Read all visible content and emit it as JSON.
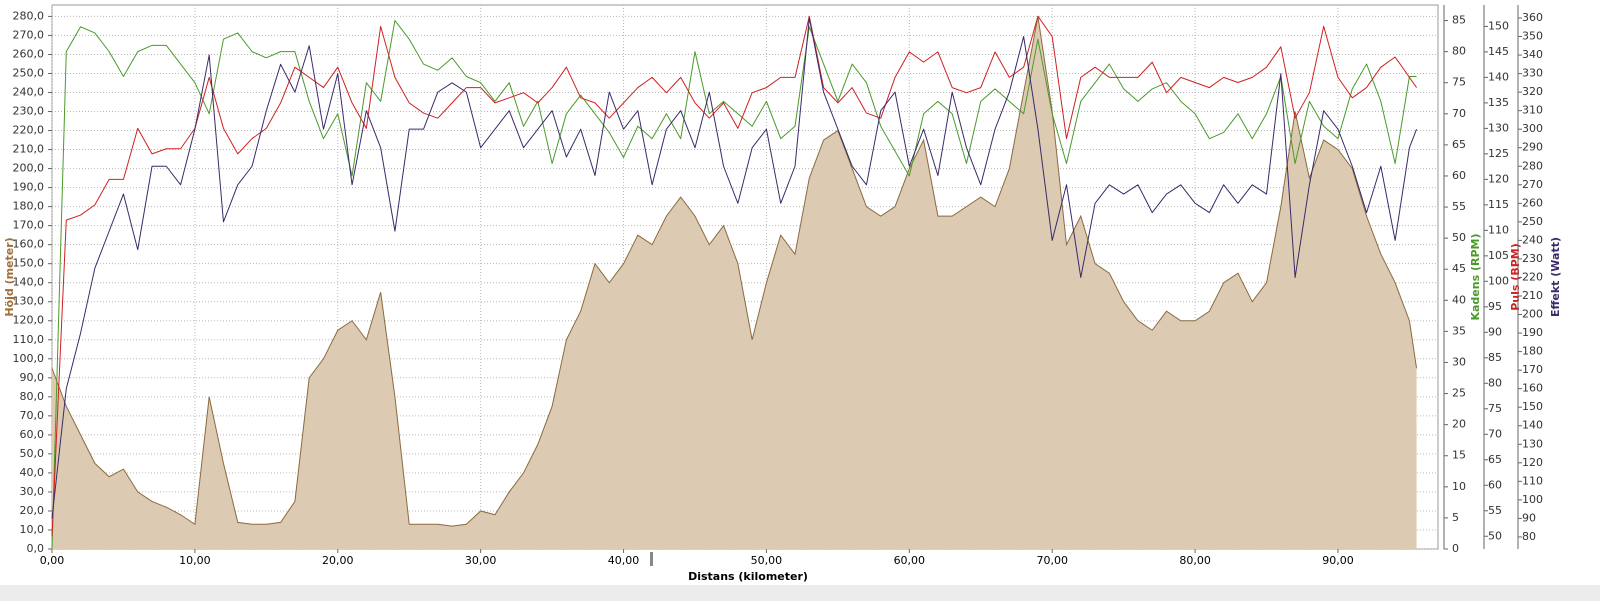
{
  "chart_data": {
    "type": "line",
    "xlabel": "Distans (kilometer)",
    "ylabel": "Höjd (meter)",
    "y2label": "Kadens (RPM)",
    "y3label": "Puls (BPM)",
    "y4label": "Effekt (Watt)",
    "grid": true,
    "xlim": [
      0,
      97
    ],
    "xticks": [
      {
        "value": 0,
        "label": "0,00"
      },
      {
        "value": 10,
        "label": "10,00"
      },
      {
        "value": 20,
        "label": "20,00"
      },
      {
        "value": 30,
        "label": "30,00"
      },
      {
        "value": 40,
        "label": "40,00"
      },
      {
        "value": 50,
        "label": "50,00"
      },
      {
        "value": 60,
        "label": "60,00"
      },
      {
        "value": 70,
        "label": "70,00"
      },
      {
        "value": 80,
        "label": "80,00"
      },
      {
        "value": 90,
        "label": "90,00"
      }
    ],
    "ylim": [
      0,
      286
    ],
    "yticks": [
      {
        "value": 0,
        "label": "0,0"
      },
      {
        "value": 10,
        "label": "10,0"
      },
      {
        "value": 20,
        "label": "20,0"
      },
      {
        "value": 30,
        "label": "30,0"
      },
      {
        "value": 40,
        "label": "40,0"
      },
      {
        "value": 50,
        "label": "50,0"
      },
      {
        "value": 60,
        "label": "60,0"
      },
      {
        "value": 70,
        "label": "70,0"
      },
      {
        "value": 80,
        "label": "80,0"
      },
      {
        "value": 90,
        "label": "90,0"
      },
      {
        "value": 100,
        "label": "100,0"
      },
      {
        "value": 110,
        "label": "110,0"
      },
      {
        "value": 120,
        "label": "120,0"
      },
      {
        "value": 130,
        "label": "130,0"
      },
      {
        "value": 140,
        "label": "140,0"
      },
      {
        "value": 150,
        "label": "150,0"
      },
      {
        "value": 160,
        "label": "160,0"
      },
      {
        "value": 170,
        "label": "170,0"
      },
      {
        "value": 180,
        "label": "180,0"
      },
      {
        "value": 190,
        "label": "190,0"
      },
      {
        "value": 200,
        "label": "200,0"
      },
      {
        "value": 210,
        "label": "210,0"
      },
      {
        "value": 220,
        "label": "220,0"
      },
      {
        "value": 230,
        "label": "230,0"
      },
      {
        "value": 240,
        "label": "240,0"
      },
      {
        "value": 250,
        "label": "250,0"
      },
      {
        "value": 260,
        "label": "260,0"
      },
      {
        "value": 270,
        "label": "270,0"
      },
      {
        "value": 280,
        "label": "280,0"
      }
    ],
    "y2lim": [
      0,
      87.5
    ],
    "y2ticks": [
      0,
      5,
      10,
      15,
      20,
      25,
      30,
      35,
      40,
      45,
      50,
      55,
      60,
      65,
      70,
      75,
      80,
      85
    ],
    "y3lim": [
      47.5,
      154.2
    ],
    "y3ticks": [
      50,
      55,
      60,
      65,
      70,
      75,
      80,
      85,
      90,
      95,
      100,
      105,
      110,
      115,
      120,
      125,
      130,
      135,
      140,
      145,
      150
    ],
    "y4lim": [
      73.5,
      367
    ],
    "y4ticks": [
      80,
      90,
      100,
      110,
      120,
      130,
      140,
      150,
      160,
      170,
      180,
      190,
      200,
      210,
      220,
      230,
      240,
      250,
      260,
      270,
      280,
      290,
      300,
      310,
      320,
      330,
      340,
      350,
      360
    ],
    "x": [
      0,
      1,
      2,
      3,
      4,
      5,
      6,
      7,
      8,
      9,
      10,
      11,
      12,
      13,
      14,
      15,
      16,
      17,
      18,
      19,
      20,
      21,
      22,
      23,
      24,
      25,
      26,
      27,
      28,
      29,
      30,
      31,
      32,
      33,
      34,
      35,
      36,
      37,
      38,
      39,
      40,
      41,
      42,
      43,
      44,
      45,
      46,
      47,
      48,
      49,
      50,
      51,
      52,
      53,
      54,
      55,
      56,
      57,
      58,
      59,
      60,
      61,
      62,
      63,
      64,
      65,
      66,
      67,
      68,
      69,
      70,
      71,
      72,
      73,
      74,
      75,
      76,
      77,
      78,
      79,
      80,
      81,
      82,
      83,
      84,
      85,
      86,
      87,
      88,
      89,
      90,
      91,
      92,
      93,
      94,
      95,
      95.5
    ],
    "series": [
      {
        "type": "area",
        "axis": "y",
        "color": "#8b6a3e",
        "fill": "#dccbb2",
        "values": [
          95,
          75,
          60,
          45,
          38,
          42,
          30,
          25,
          22,
          18,
          13,
          80,
          45,
          14,
          13,
          13,
          14,
          25,
          90,
          100,
          115,
          120,
          110,
          135,
          80,
          13,
          13,
          13,
          12,
          13,
          20,
          18,
          30,
          40,
          55,
          75,
          110,
          125,
          150,
          140,
          150,
          165,
          160,
          175,
          185,
          175,
          160,
          170,
          150,
          110,
          140,
          165,
          155,
          195,
          215,
          220,
          200,
          180,
          175,
          180,
          200,
          215,
          175,
          175,
          180,
          185,
          180,
          200,
          240,
          280,
          230,
          160,
          175,
          150,
          145,
          130,
          120,
          115,
          125,
          120,
          120,
          125,
          140,
          145,
          130,
          140,
          180,
          230,
          195,
          215,
          210,
          200,
          175,
          155,
          140,
          120,
          95
        ]
      },
      {
        "type": "line",
        "axis": "y2",
        "color": "#4a9a2a",
        "values": [
          0,
          80,
          84,
          83,
          80,
          76,
          80,
          81,
          81,
          78,
          75,
          70,
          82,
          83,
          80,
          79,
          80,
          80,
          72,
          66,
          70,
          60,
          75,
          72,
          85,
          82,
          78,
          77,
          79,
          76,
          75,
          72,
          75,
          68,
          72,
          62,
          70,
          73,
          70,
          67,
          63,
          68,
          66,
          70,
          66,
          80,
          70,
          72,
          70,
          68,
          72,
          66,
          68,
          84,
          78,
          72,
          78,
          75,
          68,
          64,
          60,
          70,
          72,
          70,
          62,
          72,
          74,
          72,
          70,
          82,
          70,
          62,
          72,
          75,
          78,
          74,
          72,
          74,
          75,
          72,
          70,
          66,
          67,
          70,
          66,
          70,
          76,
          62,
          72,
          68,
          66,
          74,
          78,
          72,
          62,
          76,
          76
        ]
      },
      {
        "type": "line",
        "axis": "y3",
        "color": "#d02020",
        "values": [
          50,
          112,
          113,
          115,
          120,
          120,
          130,
          125,
          126,
          126,
          130,
          140,
          130,
          125,
          128,
          130,
          135,
          142,
          140,
          138,
          142,
          135,
          130,
          150,
          140,
          135,
          133,
          132,
          135,
          138,
          138,
          135,
          136,
          137,
          135,
          138,
          142,
          136,
          135,
          132,
          135,
          138,
          140,
          137,
          140,
          135,
          132,
          135,
          130,
          137,
          138,
          140,
          140,
          152,
          138,
          135,
          138,
          133,
          132,
          140,
          145,
          143,
          145,
          138,
          137,
          138,
          145,
          140,
          142,
          152,
          148,
          128,
          140,
          142,
          140,
          140,
          140,
          143,
          137,
          140,
          139,
          138,
          140,
          139,
          140,
          142,
          146,
          132,
          137,
          150,
          140,
          136,
          138,
          142,
          144,
          140,
          138
        ]
      },
      {
        "type": "line",
        "axis": "y4",
        "color": "#3a2a6a",
        "values": [
          90,
          160,
          190,
          225,
          245,
          265,
          235,
          280,
          280,
          270,
          300,
          340,
          250,
          270,
          280,
          310,
          335,
          320,
          345,
          300,
          330,
          270,
          310,
          290,
          245,
          300,
          300,
          320,
          325,
          320,
          290,
          300,
          310,
          290,
          300,
          310,
          285,
          300,
          275,
          320,
          300,
          310,
          270,
          300,
          310,
          290,
          320,
          280,
          260,
          290,
          300,
          260,
          280,
          360,
          320,
          300,
          280,
          270,
          310,
          320,
          280,
          300,
          275,
          320,
          290,
          270,
          300,
          320,
          350,
          300,
          240,
          270,
          220,
          260,
          270,
          265,
          270,
          255,
          265,
          270,
          260,
          255,
          270,
          260,
          270,
          265,
          330,
          220,
          270,
          310,
          300,
          280,
          255,
          280,
          240,
          290,
          300
        ]
      }
    ]
  }
}
